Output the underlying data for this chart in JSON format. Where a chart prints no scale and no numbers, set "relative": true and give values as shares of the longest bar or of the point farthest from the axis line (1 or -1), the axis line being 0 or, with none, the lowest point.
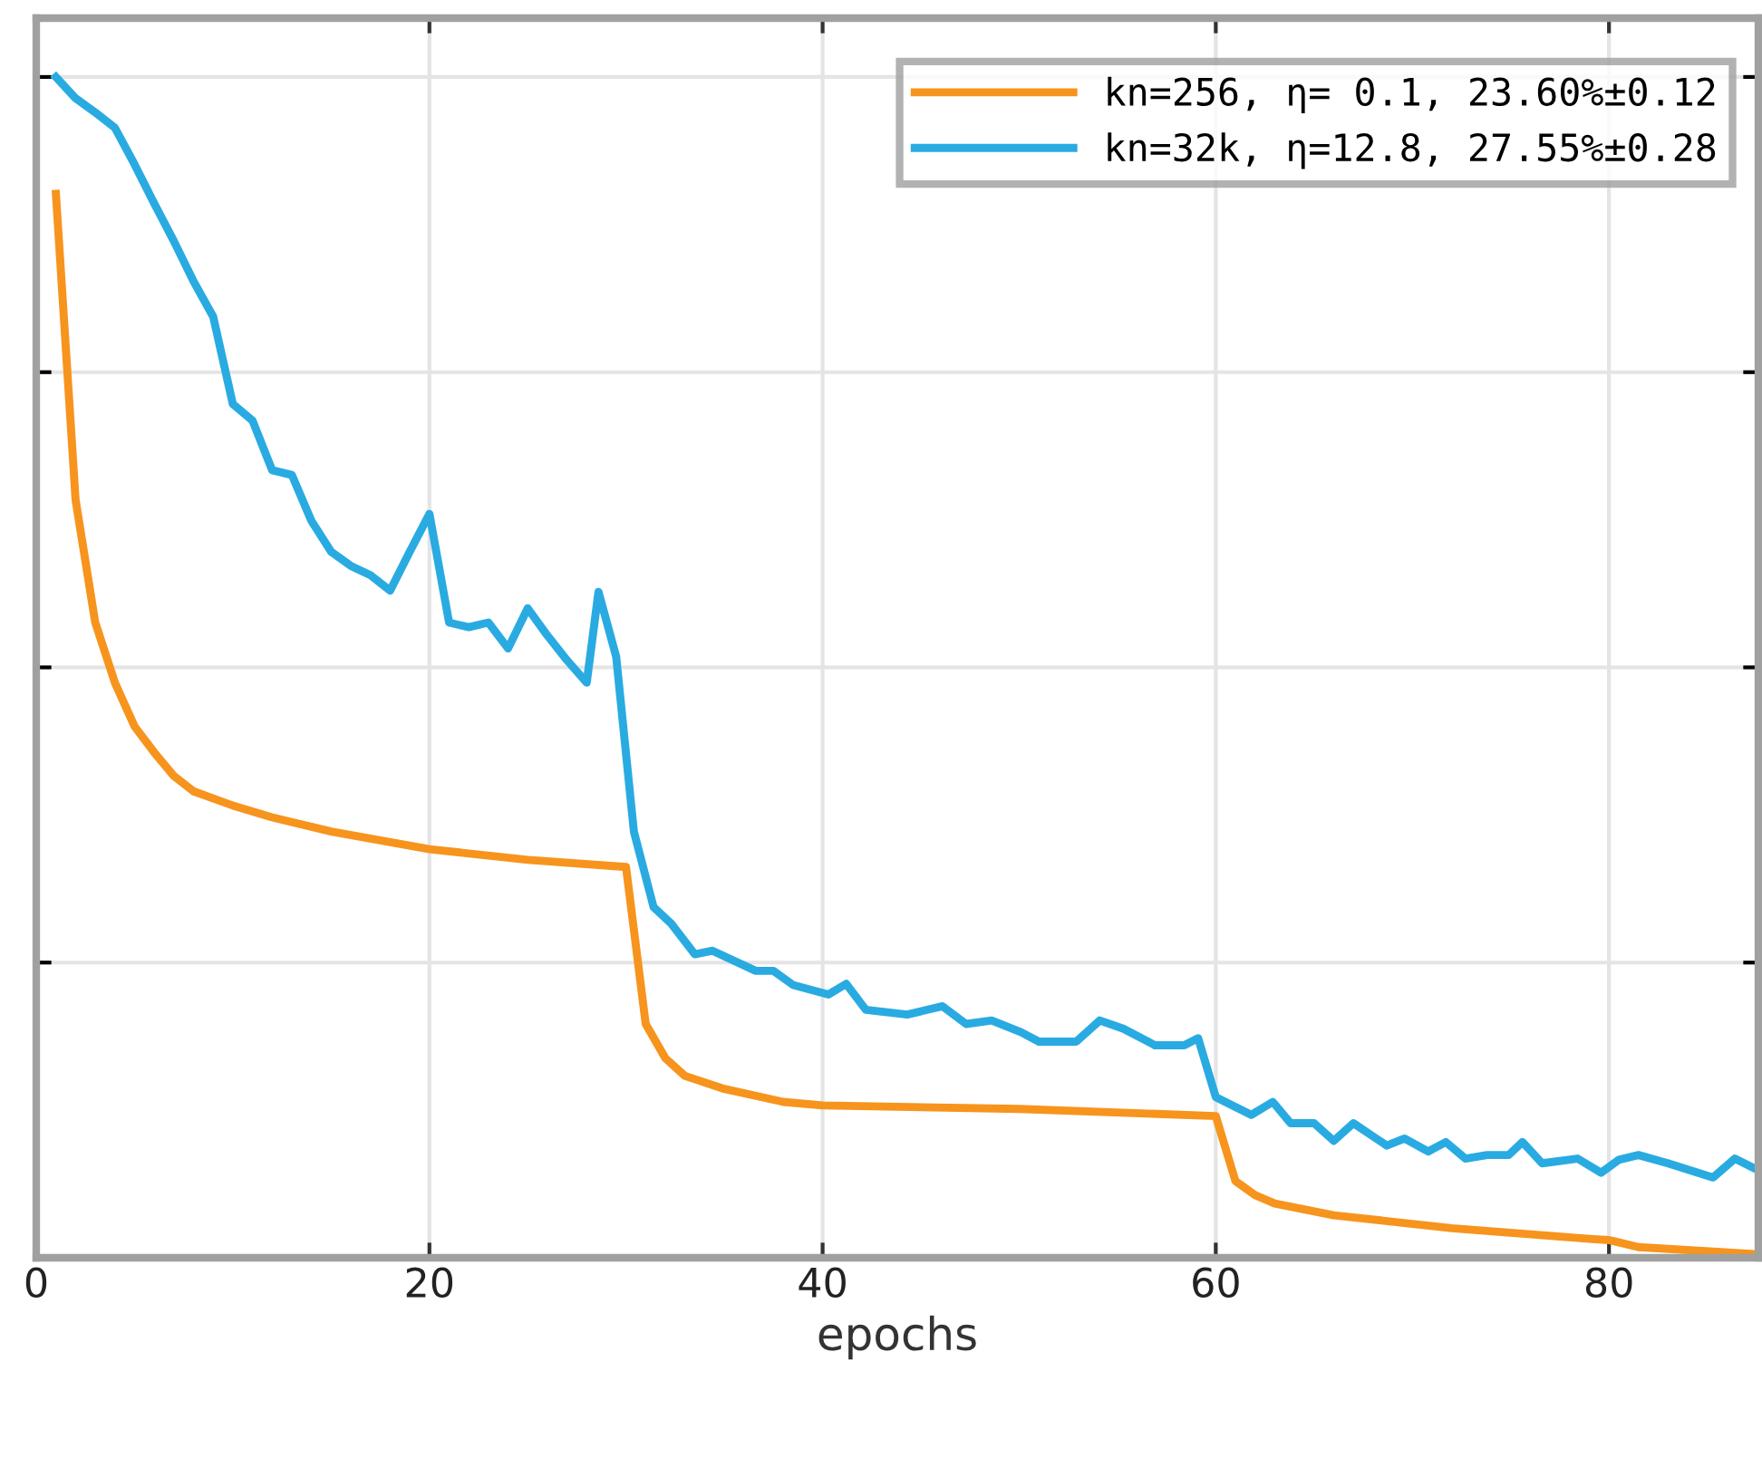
{
  "chart_data": {
    "type": "line",
    "xlabel": "epochs",
    "relative": true,
    "xlim": [
      0,
      87.6
    ],
    "xticks": [
      0,
      20,
      40,
      60,
      80
    ],
    "tick_labels": "x",
    "grid": true,
    "legend": "top right",
    "marker": "none",
    "line_style": "solid",
    "series": [
      {
        "name": "kn=256, η= 0.1, 23.60%±0.12",
        "color": "#f7941d",
        "x": [
          1,
          2,
          3,
          4,
          5,
          6,
          7,
          8,
          10,
          12,
          15,
          20,
          25,
          30,
          31,
          32,
          33,
          35,
          38,
          40,
          50,
          60,
          61,
          62,
          63,
          66,
          72,
          79,
          80,
          81.5,
          87.6
        ],
        "values": [
          0.901,
          0.642,
          0.538,
          0.487,
          0.45,
          0.428,
          0.408,
          0.395,
          0.383,
          0.373,
          0.361,
          0.346,
          0.337,
          0.331,
          0.198,
          0.169,
          0.154,
          0.143,
          0.132,
          0.129,
          0.126,
          0.12,
          0.065,
          0.053,
          0.046,
          0.036,
          0.025,
          0.016,
          0.015,
          0.009,
          0.003
        ]
      },
      {
        "name": "kn=32k, η=12.8, 27.55%±0.28",
        "color": "#29abe2",
        "x": [
          1,
          2,
          3,
          4,
          5,
          6,
          7,
          8,
          9,
          10,
          11,
          12,
          13,
          14,
          15,
          16,
          17,
          18,
          19,
          20,
          21,
          22,
          23,
          24,
          25,
          26,
          27,
          28,
          28.6,
          29.5,
          30.4,
          31.4,
          32.3,
          33.5,
          34.4,
          36.6,
          37.5,
          38.5,
          40.3,
          41.2,
          42.2,
          44.3,
          46.1,
          47.3,
          48.6,
          50.1,
          51,
          52.9,
          54.1,
          55.3,
          56.9,
          58.4,
          59.1,
          60,
          61.8,
          62.9,
          63.8,
          65,
          66,
          67,
          68.7,
          69.6,
          70.8,
          71.7,
          72.7,
          73.8,
          74.9,
          75.6,
          76.6,
          78.4,
          79.6,
          80.5,
          81.5,
          83,
          85.3,
          86.4,
          87.6
        ],
        "values": [
          1.0,
          0.982,
          0.97,
          0.957,
          0.926,
          0.893,
          0.861,
          0.827,
          0.797,
          0.723,
          0.709,
          0.667,
          0.663,
          0.624,
          0.598,
          0.586,
          0.578,
          0.565,
          0.598,
          0.63,
          0.538,
          0.534,
          0.538,
          0.516,
          0.55,
          0.527,
          0.506,
          0.487,
          0.564,
          0.509,
          0.361,
          0.297,
          0.283,
          0.257,
          0.26,
          0.243,
          0.243,
          0.231,
          0.223,
          0.232,
          0.21,
          0.206,
          0.213,
          0.198,
          0.201,
          0.191,
          0.183,
          0.183,
          0.201,
          0.194,
          0.18,
          0.18,
          0.186,
          0.136,
          0.121,
          0.132,
          0.114,
          0.114,
          0.099,
          0.114,
          0.095,
          0.101,
          0.09,
          0.098,
          0.084,
          0.087,
          0.087,
          0.098,
          0.08,
          0.084,
          0.072,
          0.083,
          0.087,
          0.08,
          0.068,
          0.084,
          0.074
        ]
      }
    ]
  }
}
